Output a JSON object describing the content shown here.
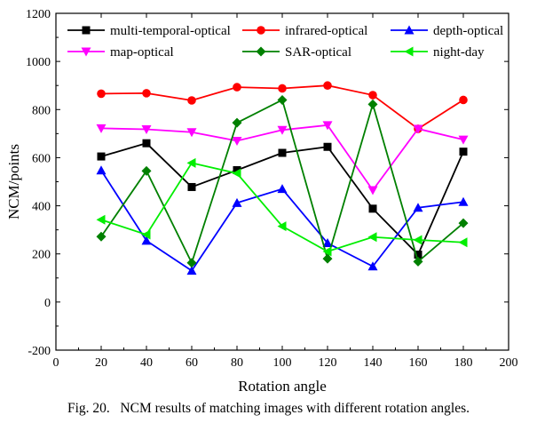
{
  "chart_data": {
    "type": "line",
    "title": "",
    "xlabel": "Rotation angle",
    "ylabel": "NCM/points",
    "xlim": [
      0,
      200
    ],
    "ylim": [
      -200,
      1200
    ],
    "x_ticks": [
      0,
      20,
      40,
      60,
      80,
      100,
      120,
      140,
      160,
      180,
      200
    ],
    "y_ticks": [
      -200,
      0,
      200,
      400,
      600,
      800,
      1000,
      1200
    ],
    "grid": false,
    "legend_position": "top",
    "x": [
      20,
      40,
      60,
      80,
      100,
      120,
      140,
      160,
      180
    ],
    "series": [
      {
        "name": "multi-temporal-optical",
        "color": "#000000",
        "marker": "square",
        "values": [
          605,
          660,
          478,
          548,
          620,
          645,
          388,
          197,
          625
        ]
      },
      {
        "name": "infrared-optical",
        "color": "#ff0000",
        "marker": "circle",
        "values": [
          866,
          868,
          838,
          893,
          888,
          900,
          860,
          720,
          840
        ]
      },
      {
        "name": "depth-optical",
        "color": "#0000ff",
        "marker": "triangle-up",
        "values": [
          547,
          255,
          130,
          412,
          470,
          245,
          148,
          392,
          416
        ]
      },
      {
        "name": "map-optical",
        "color": "#ff00ff",
        "marker": "triangle-down",
        "values": [
          722,
          718,
          706,
          670,
          715,
          735,
          465,
          720,
          675
        ]
      },
      {
        "name": "SAR-optical",
        "color": "#008000",
        "marker": "diamond",
        "values": [
          272,
          545,
          163,
          745,
          840,
          180,
          822,
          168,
          328
        ]
      },
      {
        "name": "night-day",
        "color": "#00ee00",
        "marker": "triangle-left",
        "values": [
          342,
          280,
          578,
          535,
          315,
          210,
          270,
          258,
          248
        ]
      }
    ]
  },
  "caption": "Fig. 20.   NCM results of matching images with different rotation angles."
}
